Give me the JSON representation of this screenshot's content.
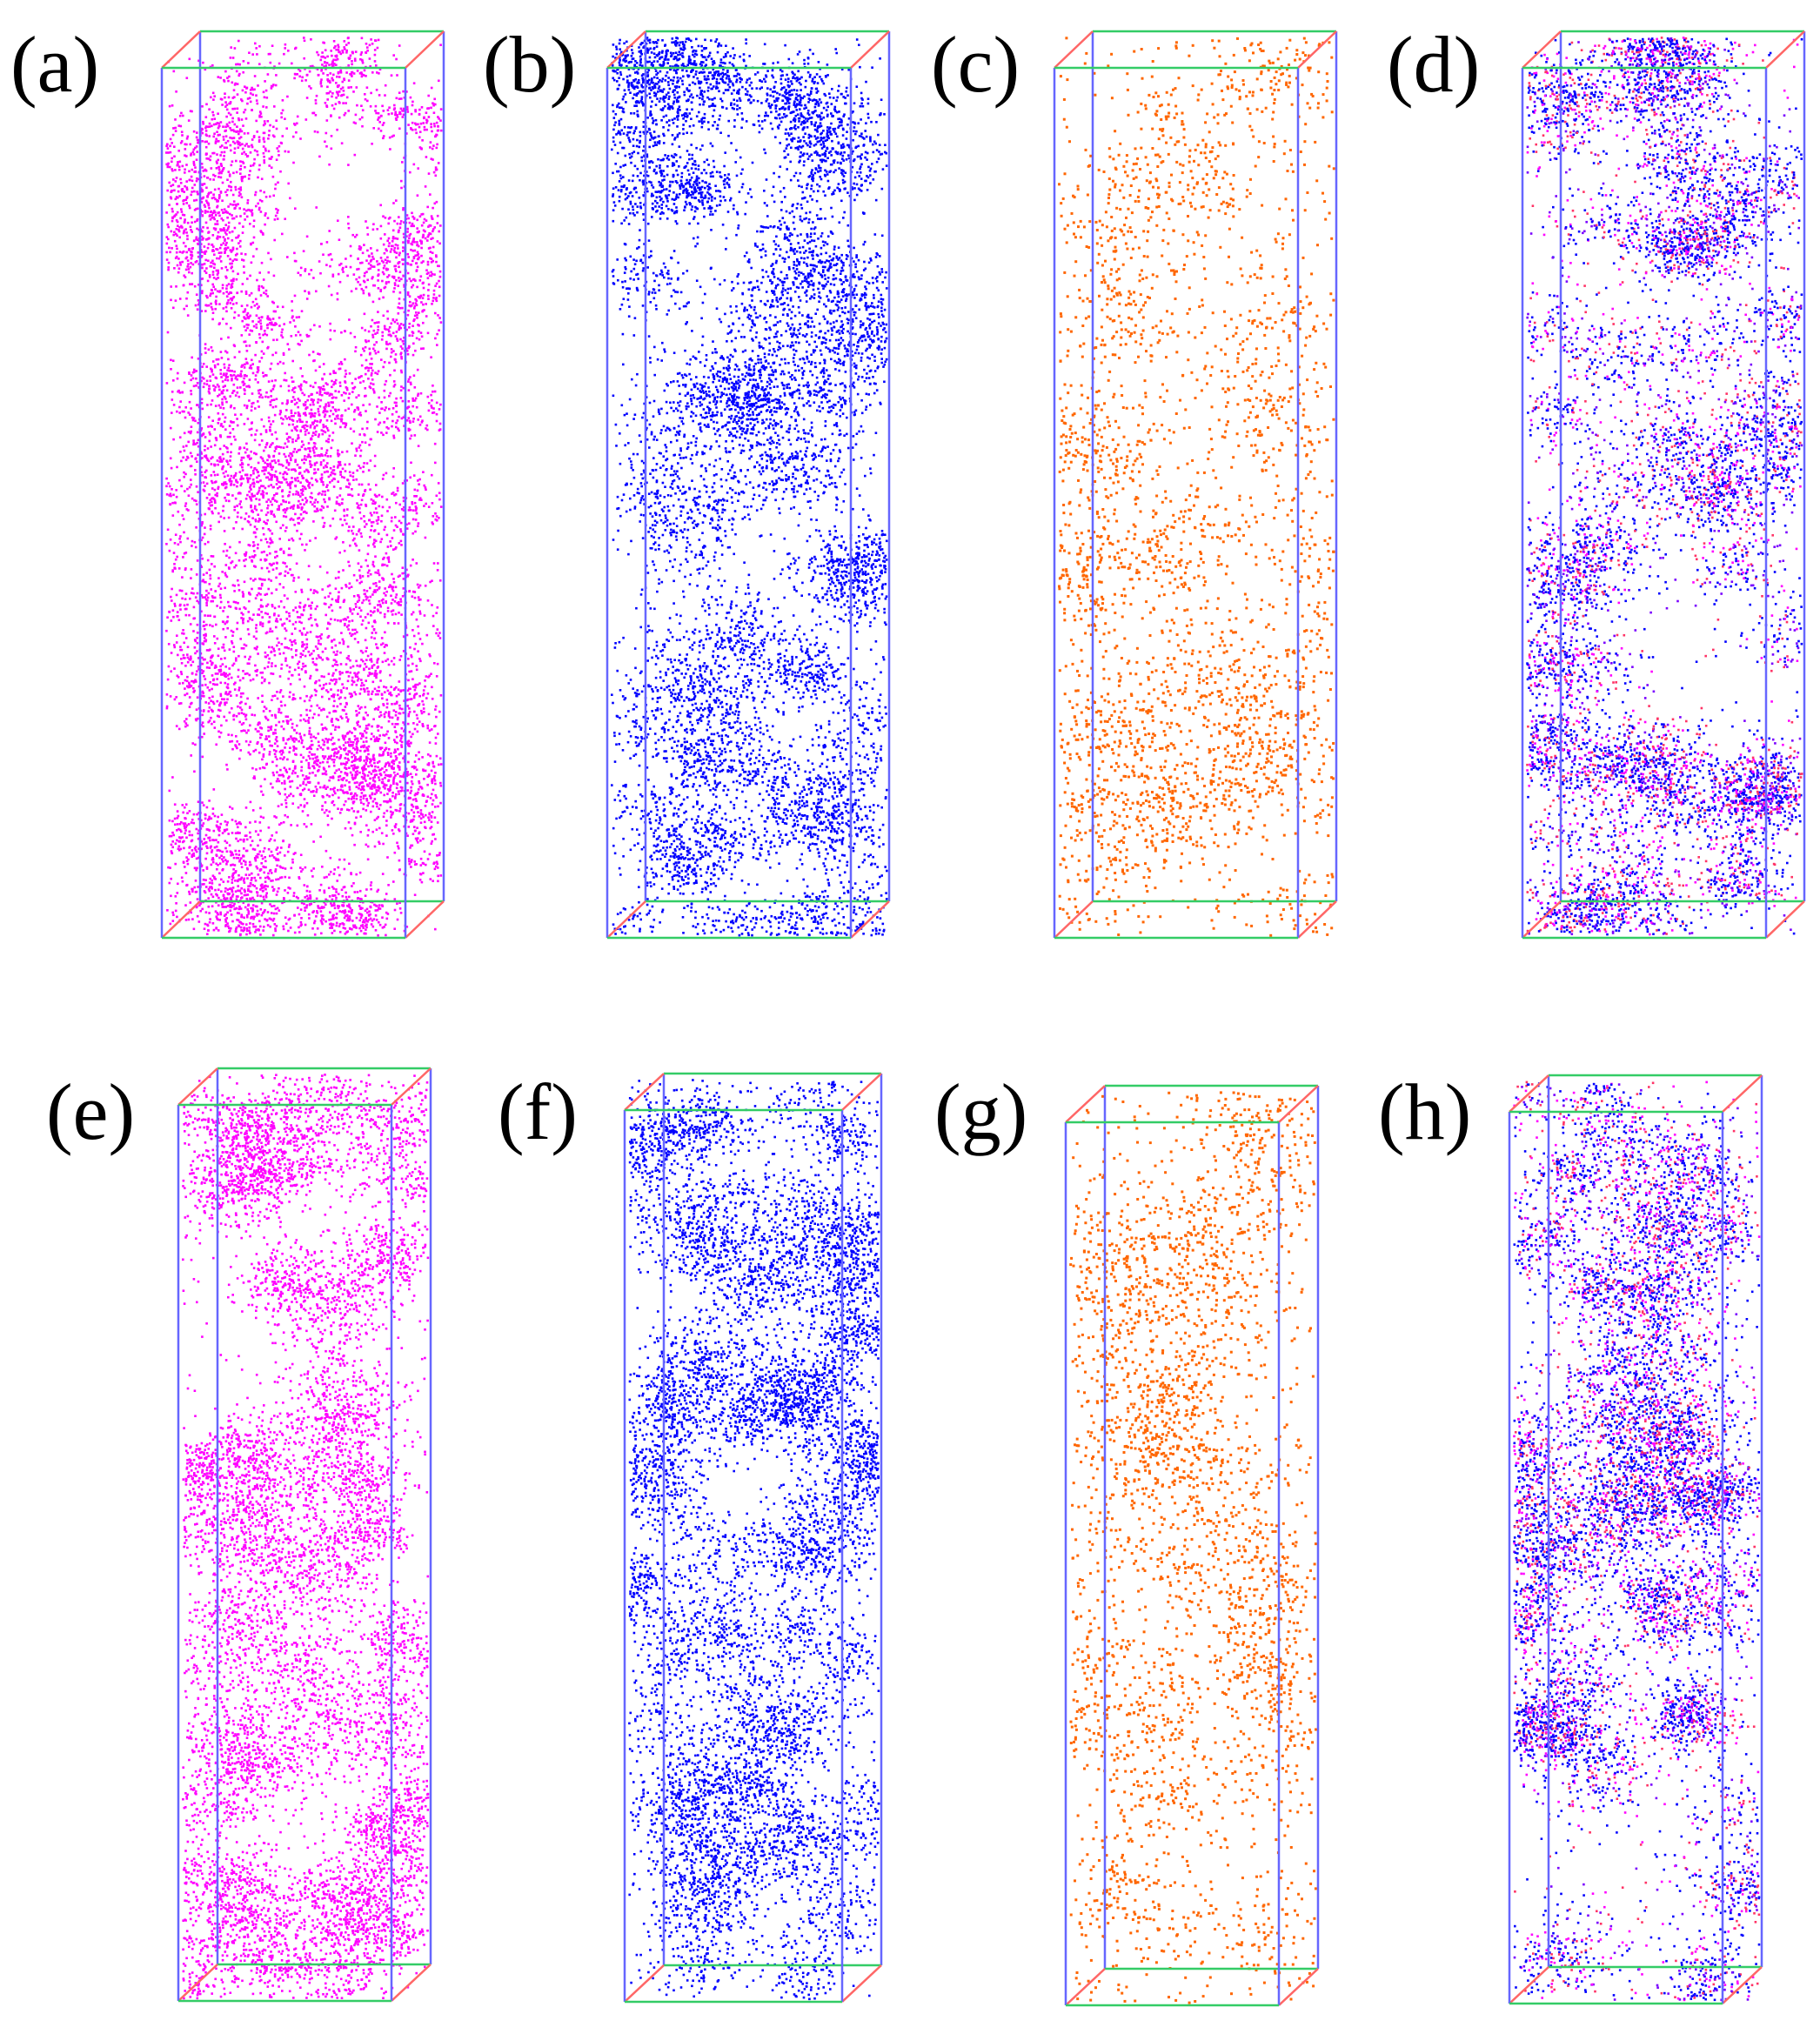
{
  "colors": {
    "magenta": "#ff00ff",
    "blue": "#0000ff",
    "orange": "#ff6600",
    "box_edge_vertical": "#6666ff",
    "box_edge_horizontal": "#33cc66",
    "box_edge_depth": "#ff6666",
    "background": "#ffffff"
  },
  "panels": [
    {
      "label": "(a)",
      "point_color": "magenta",
      "density": "clustered"
    },
    {
      "label": "(b)",
      "point_color": "blue",
      "density": "clustered"
    },
    {
      "label": "(c)",
      "point_color": "orange",
      "density": "sparse"
    },
    {
      "label": "(d)",
      "point_color": "blue-magenta mix",
      "density": "clustered"
    },
    {
      "label": "(e)",
      "point_color": "magenta",
      "density": "clustered"
    },
    {
      "label": "(f)",
      "point_color": "blue",
      "density": "clustered"
    },
    {
      "label": "(g)",
      "point_color": "orange",
      "density": "sparse"
    },
    {
      "label": "(h)",
      "point_color": "blue-magenta mix",
      "density": "clustered"
    }
  ]
}
